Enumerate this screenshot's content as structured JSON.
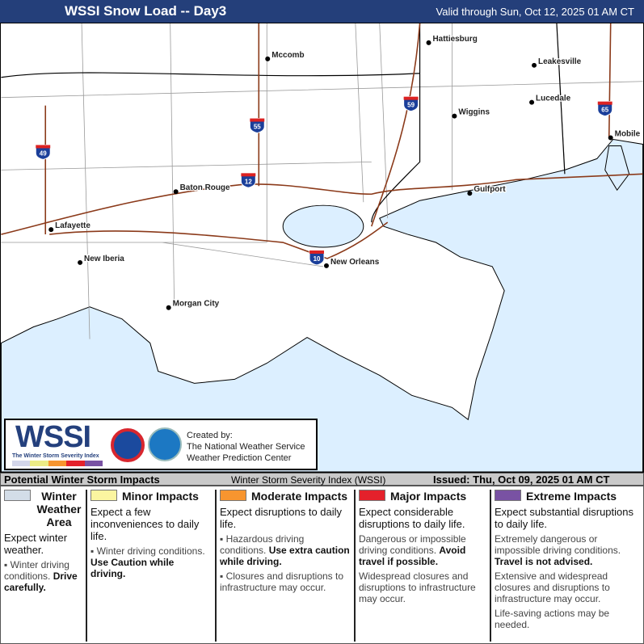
{
  "header": {
    "title": "WSSI Snow Load -- Day3",
    "valid": "Valid through Sun, Oct 12, 2025 01 AM CT"
  },
  "map": {
    "water_color": "#dcefff",
    "cities": [
      {
        "name": "Hattiesburg",
        "lon": -89.29,
        "lat": 31.33
      },
      {
        "name": "Mccomb",
        "lon": -90.45,
        "lat": 31.24
      },
      {
        "name": "Leakesville",
        "lon": -88.56,
        "lat": 31.15
      },
      {
        "name": "Lucedale",
        "lon": -88.59,
        "lat": 30.93
      },
      {
        "name": "Wiggins",
        "lon": -89.14,
        "lat": 30.86
      },
      {
        "name": "Mobile",
        "lon": -88.04,
        "lat": 30.69
      },
      {
        "name": "Baton Rouge",
        "lon": -91.15,
        "lat": 30.45
      },
      {
        "name": "Gulfport",
        "lon": -89.09,
        "lat": 30.37
      },
      {
        "name": "Lafayette",
        "lon": -92.02,
        "lat": 30.22
      },
      {
        "name": "New Iberia",
        "lon": -91.82,
        "lat": 30.0
      },
      {
        "name": "New Orleans",
        "lon": -90.07,
        "lat": 29.95
      },
      {
        "name": "Morgan City",
        "lon": -91.21,
        "lat": 29.7
      }
    ],
    "interstates": [
      "49",
      "55",
      "59",
      "12",
      "10",
      "65"
    ]
  },
  "logo": {
    "wordmark": "WSSI",
    "subtitle": "The Winter Storm Severity Index",
    "created_by": "Created by:",
    "org1": "The National Weather Service",
    "org2": "Weather Prediction Center",
    "nws_seal": "National Weather Service",
    "noaa_seal": "NOAA"
  },
  "legend_header": {
    "title": "Potential Winter Storm Impacts",
    "center": "Winter Storm Severity Index (WSSI)",
    "issued": "Issued: Thu, Oct 09, 2025 01 AM CT"
  },
  "legend": [
    {
      "title": "Winter Weather Area",
      "color": "#d3dde8",
      "expect": "Expect winter weather.",
      "items": [
        {
          "text": "Winter driving conditions. ",
          "bold": "Drive carefully."
        }
      ]
    },
    {
      "title": "Minor Impacts",
      "color": "#fbf5a0",
      "expect": "Expect a few inconveniences to daily life.",
      "items": [
        {
          "text": "Winter driving conditions. ",
          "bold": "Use Caution while driving."
        }
      ]
    },
    {
      "title": "Moderate Impacts",
      "color": "#f7952f",
      "expect": "Expect disruptions to daily life.",
      "items": [
        {
          "text": "Hazardous driving conditions. ",
          "bold": "Use extra caution while driving."
        },
        {
          "text": "Closures and disruptions to infrastructure may occur.",
          "bold": ""
        }
      ]
    },
    {
      "title": "Major Impacts",
      "color": "#e4212b",
      "expect": "Expect considerable disruptions to daily life.",
      "items": [
        {
          "text": "Dangerous or impossible driving conditions. ",
          "bold": "Avoid travel if possible."
        },
        {
          "text": "Widespread closures and disruptions to infrastructure may occur.",
          "bold": ""
        }
      ]
    },
    {
      "title": "Extreme Impacts",
      "color": "#7952a3",
      "expect": "Expect substantial disruptions to daily life.",
      "items": [
        {
          "text": "Extremely dangerous or impossible driving conditions. ",
          "bold": "Travel is not advised."
        },
        {
          "text": "Extensive and widespread closures and disruptions to infrastructure may occur.",
          "bold": ""
        },
        {
          "text": "Life-saving actions may be needed.",
          "bold": ""
        }
      ]
    }
  ]
}
